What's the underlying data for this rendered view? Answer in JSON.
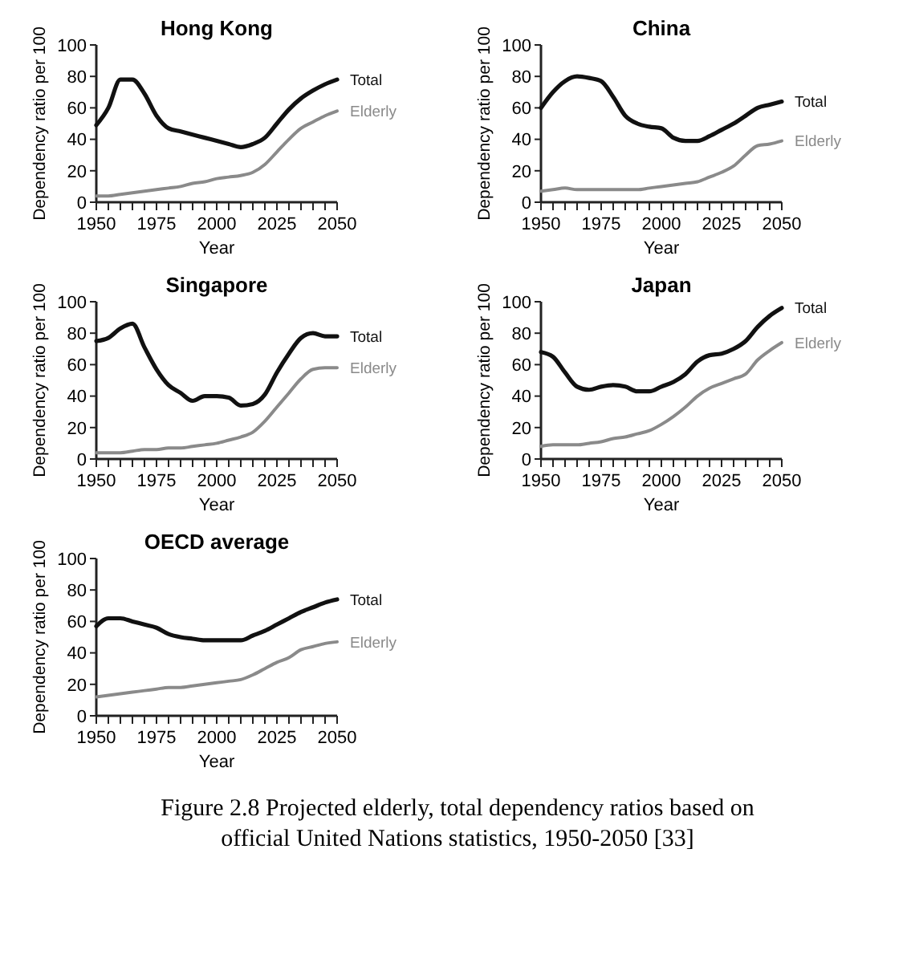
{
  "chart_data": [
    {
      "type": "line",
      "title": "Hong Kong",
      "xlabel": "Year",
      "ylabel": "Dependency ratio per 100",
      "x": [
        1950,
        1955,
        1960,
        1965,
        1970,
        1975,
        1980,
        1985,
        1990,
        1995,
        2000,
        2005,
        2010,
        2015,
        2020,
        2025,
        2030,
        2035,
        2040,
        2045,
        2050
      ],
      "xlim": [
        1950,
        2050
      ],
      "xticks": [
        1950,
        {
          "value": 1955,
          "label": null
        },
        {
          "value": 1960,
          "label": null
        },
        {
          "value": 1965,
          "label": null
        },
        {
          "value": 1970,
          "label": null
        },
        1975,
        {
          "value": 1980,
          "label": null
        },
        {
          "value": 1985,
          "label": null
        },
        {
          "value": 1990,
          "label": null
        },
        {
          "value": 1995,
          "label": null
        },
        2000,
        {
          "value": 2005,
          "label": null
        },
        {
          "value": 2010,
          "label": null
        },
        {
          "value": 2015,
          "label": null
        },
        {
          "value": 2020,
          "label": null
        },
        2025,
        {
          "value": 2030,
          "label": null
        },
        {
          "value": 2035,
          "label": null
        },
        {
          "value": 2040,
          "label": null
        },
        {
          "value": 2045,
          "label": null
        },
        2050
      ],
      "ylim": [
        0,
        100
      ],
      "yticks": [
        0,
        20,
        40,
        60,
        80,
        100
      ],
      "series": [
        {
          "name": "Total",
          "color": "#111111",
          "values": [
            49,
            60,
            78,
            78,
            69,
            55,
            47,
            45,
            43,
            41,
            39,
            37,
            35,
            37,
            41,
            50,
            59,
            66,
            71,
            75,
            78
          ]
        },
        {
          "name": "Elderly",
          "color": "#8a8a8a",
          "values": [
            4,
            4,
            5,
            6,
            7,
            8,
            9,
            10,
            12,
            13,
            15,
            16,
            17,
            19,
            24,
            32,
            40,
            47,
            51,
            55,
            58
          ]
        }
      ]
    },
    {
      "type": "line",
      "title": "China",
      "xlabel": "Year",
      "ylabel": "Dependency ratio per 100",
      "x": [
        1950,
        1955,
        1960,
        1965,
        1970,
        1975,
        1980,
        1985,
        1990,
        1995,
        2000,
        2005,
        2010,
        2015,
        2020,
        2025,
        2030,
        2035,
        2040,
        2045,
        2050
      ],
      "xlim": [
        1950,
        2050
      ],
      "xticks": [
        1950,
        {
          "value": 1955,
          "label": null
        },
        {
          "value": 1960,
          "label": null
        },
        {
          "value": 1965,
          "label": null
        },
        {
          "value": 1970,
          "label": null
        },
        1975,
        {
          "value": 1980,
          "label": null
        },
        {
          "value": 1985,
          "label": null
        },
        {
          "value": 1990,
          "label": null
        },
        {
          "value": 1995,
          "label": null
        },
        2000,
        {
          "value": 2005,
          "label": null
        },
        {
          "value": 2010,
          "label": null
        },
        {
          "value": 2015,
          "label": null
        },
        {
          "value": 2020,
          "label": null
        },
        2025,
        {
          "value": 2030,
          "label": null
        },
        {
          "value": 2035,
          "label": null
        },
        {
          "value": 2040,
          "label": null
        },
        {
          "value": 2045,
          "label": null
        },
        2050
      ],
      "ylim": [
        0,
        100
      ],
      "yticks": [
        0,
        20,
        40,
        60,
        80,
        100
      ],
      "series": [
        {
          "name": "Total",
          "color": "#111111",
          "values": [
            60,
            70,
            77,
            80,
            79,
            77,
            67,
            55,
            50,
            48,
            47,
            41,
            39,
            39,
            42,
            46,
            50,
            55,
            60,
            62,
            64
          ]
        },
        {
          "name": "Elderly",
          "color": "#8a8a8a",
          "values": [
            7,
            8,
            9,
            8,
            8,
            8,
            8,
            8,
            8,
            9,
            10,
            11,
            12,
            13,
            16,
            19,
            23,
            30,
            36,
            37,
            39
          ]
        }
      ]
    },
    {
      "type": "line",
      "title": "Singapore",
      "xlabel": "Year",
      "ylabel": "Dependency ratio per 100",
      "x": [
        1950,
        1955,
        1960,
        1965,
        1970,
        1975,
        1980,
        1985,
        1990,
        1995,
        2000,
        2005,
        2010,
        2015,
        2020,
        2025,
        2030,
        2035,
        2040,
        2045,
        2050
      ],
      "xlim": [
        1950,
        2050
      ],
      "xticks": [
        1950,
        {
          "value": 1955,
          "label": null
        },
        {
          "value": 1960,
          "label": null
        },
        {
          "value": 1965,
          "label": null
        },
        {
          "value": 1970,
          "label": null
        },
        1975,
        {
          "value": 1980,
          "label": null
        },
        {
          "value": 1985,
          "label": null
        },
        {
          "value": 1990,
          "label": null
        },
        {
          "value": 1995,
          "label": null
        },
        2000,
        {
          "value": 2005,
          "label": null
        },
        {
          "value": 2010,
          "label": null
        },
        {
          "value": 2015,
          "label": null
        },
        {
          "value": 2020,
          "label": null
        },
        2025,
        {
          "value": 2030,
          "label": null
        },
        {
          "value": 2035,
          "label": null
        },
        {
          "value": 2040,
          "label": null
        },
        {
          "value": 2045,
          "label": null
        },
        2050
      ],
      "ylim": [
        0,
        100
      ],
      "yticks": [
        0,
        20,
        40,
        60,
        80,
        100
      ],
      "series": [
        {
          "name": "Total",
          "color": "#111111",
          "values": [
            75,
            77,
            83,
            86,
            71,
            57,
            47,
            42,
            37,
            40,
            40,
            39,
            34,
            35,
            41,
            55,
            67,
            77,
            80,
            78,
            78
          ]
        },
        {
          "name": "Elderly",
          "color": "#8a8a8a",
          "values": [
            4,
            4,
            4,
            5,
            6,
            6,
            7,
            7,
            8,
            9,
            10,
            12,
            14,
            17,
            24,
            33,
            42,
            51,
            57,
            58,
            58
          ]
        }
      ]
    },
    {
      "type": "line",
      "title": "Japan",
      "xlabel": "Year",
      "ylabel": "Dependency ratio per 100",
      "x": [
        1950,
        1955,
        1960,
        1965,
        1970,
        1975,
        1980,
        1985,
        1990,
        1995,
        2000,
        2005,
        2010,
        2015,
        2020,
        2025,
        2030,
        2035,
        2040,
        2045,
        2050
      ],
      "xlim": [
        1950,
        2050
      ],
      "xticks": [
        1950,
        {
          "value": 1955,
          "label": null
        },
        {
          "value": 1960,
          "label": null
        },
        {
          "value": 1965,
          "label": null
        },
        {
          "value": 1970,
          "label": null
        },
        1975,
        {
          "value": 1980,
          "label": null
        },
        {
          "value": 1985,
          "label": null
        },
        {
          "value": 1990,
          "label": null
        },
        {
          "value": 1995,
          "label": null
        },
        2000,
        {
          "value": 2005,
          "label": null
        },
        {
          "value": 2010,
          "label": null
        },
        {
          "value": 2015,
          "label": null
        },
        {
          "value": 2020,
          "label": null
        },
        2025,
        {
          "value": 2030,
          "label": null
        },
        {
          "value": 2035,
          "label": null
        },
        {
          "value": 2040,
          "label": null
        },
        {
          "value": 2045,
          "label": null
        },
        2050
      ],
      "ylim": [
        0,
        100
      ],
      "yticks": [
        0,
        20,
        40,
        60,
        80,
        100
      ],
      "series": [
        {
          "name": "Total",
          "color": "#111111",
          "values": [
            68,
            65,
            55,
            46,
            44,
            46,
            47,
            46,
            43,
            43,
            46,
            49,
            54,
            62,
            66,
            67,
            70,
            75,
            84,
            91,
            96
          ]
        },
        {
          "name": "Elderly",
          "color": "#8a8a8a",
          "values": [
            8,
            9,
            9,
            9,
            10,
            11,
            13,
            14,
            16,
            18,
            22,
            27,
            33,
            40,
            45,
            48,
            51,
            54,
            63,
            69,
            74
          ]
        }
      ]
    },
    {
      "type": "line",
      "title": "OECD average",
      "xlabel": "Year",
      "ylabel": "Dependency ratio per 100",
      "x": [
        1950,
        1955,
        1960,
        1965,
        1970,
        1975,
        1980,
        1985,
        1990,
        1995,
        2000,
        2005,
        2010,
        2015,
        2020,
        2025,
        2030,
        2035,
        2040,
        2045,
        2050
      ],
      "xlim": [
        1950,
        2050
      ],
      "xticks": [
        1950,
        {
          "value": 1955,
          "label": null
        },
        {
          "value": 1960,
          "label": null
        },
        {
          "value": 1965,
          "label": null
        },
        {
          "value": 1970,
          "label": null
        },
        1975,
        {
          "value": 1980,
          "label": null
        },
        {
          "value": 1985,
          "label": null
        },
        {
          "value": 1990,
          "label": null
        },
        {
          "value": 1995,
          "label": null
        },
        2000,
        {
          "value": 2005,
          "label": null
        },
        {
          "value": 2010,
          "label": null
        },
        {
          "value": 2015,
          "label": null
        },
        {
          "value": 2020,
          "label": null
        },
        2025,
        {
          "value": 2030,
          "label": null
        },
        {
          "value": 2035,
          "label": null
        },
        {
          "value": 2040,
          "label": null
        },
        {
          "value": 2045,
          "label": null
        },
        2050
      ],
      "ylim": [
        0,
        100
      ],
      "yticks": [
        0,
        20,
        40,
        60,
        80,
        100
      ],
      "annotations": [
        "Figure 2.8 Projected elderly, total dependency ratios based on official United Nations statistics, 1950-2050 [33]"
      ],
      "series": [
        {
          "name": "Total",
          "color": "#111111",
          "values": [
            57,
            62,
            62,
            60,
            58,
            56,
            52,
            50,
            49,
            48,
            48,
            48,
            48,
            51,
            54,
            58,
            62,
            66,
            69,
            72,
            74
          ]
        },
        {
          "name": "Elderly",
          "color": "#8a8a8a",
          "values": [
            12,
            13,
            14,
            15,
            16,
            17,
            18,
            18,
            19,
            20,
            21,
            22,
            23,
            26,
            30,
            34,
            37,
            42,
            44,
            46,
            47
          ]
        }
      ]
    }
  ]
}
